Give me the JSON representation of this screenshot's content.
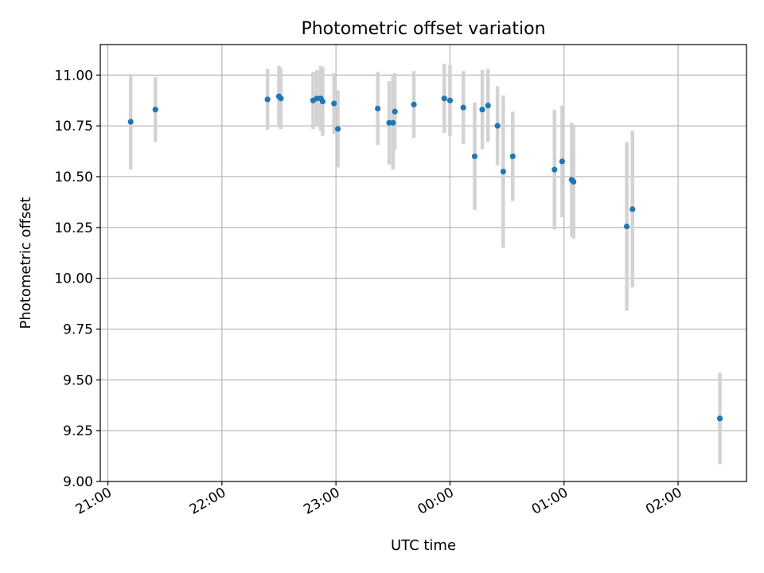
{
  "chart_data": {
    "type": "scatter",
    "title": "Photometric offset variation",
    "xlabel": "UTC time",
    "ylabel": "Photometric offset",
    "x_axis": "time",
    "xlim": [
      "20:56",
      "02:36"
    ],
    "ylim": [
      9.0,
      11.15
    ],
    "x_ticks": [
      "21:00",
      "22:00",
      "23:00",
      "00:00",
      "01:00",
      "02:00"
    ],
    "y_ticks": [
      "9.00",
      "9.25",
      "9.50",
      "9.75",
      "10.00",
      "10.25",
      "10.50",
      "10.75",
      "11.00"
    ],
    "grid": true,
    "marker_color": "#1f77b4",
    "errorbar_color": "#d3d3d3",
    "points": [
      {
        "t": "21:12",
        "y": 10.77,
        "err": 0.235
      },
      {
        "t": "21:25",
        "y": 10.83,
        "err": 0.16
      },
      {
        "t": "22:24",
        "y": 10.88,
        "err": 0.15
      },
      {
        "t": "22:30",
        "y": 10.895,
        "err": 0.15
      },
      {
        "t": "22:31",
        "y": 10.885,
        "err": 0.15
      },
      {
        "t": "22:48",
        "y": 10.875,
        "err": 0.14
      },
      {
        "t": "22:50",
        "y": 10.885,
        "err": 0.14
      },
      {
        "t": "22:52",
        "y": 10.885,
        "err": 0.16
      },
      {
        "t": "22:53",
        "y": 10.87,
        "err": 0.17
      },
      {
        "t": "22:59",
        "y": 10.86,
        "err": 0.15
      },
      {
        "t": "23:01",
        "y": 10.735,
        "err": 0.19
      },
      {
        "t": "23:22",
        "y": 10.835,
        "err": 0.18
      },
      {
        "t": "23:28",
        "y": 10.765,
        "err": 0.205
      },
      {
        "t": "23:30",
        "y": 10.765,
        "err": 0.23
      },
      {
        "t": "23:31",
        "y": 10.82,
        "err": 0.19
      },
      {
        "t": "23:41",
        "y": 10.855,
        "err": 0.165
      },
      {
        "t": "23:57",
        "y": 10.885,
        "err": 0.17
      },
      {
        "t": "00:00",
        "y": 10.875,
        "err": 0.175
      },
      {
        "t": "00:07",
        "y": 10.84,
        "err": 0.18
      },
      {
        "t": "00:13",
        "y": 10.6,
        "err": 0.265
      },
      {
        "t": "00:17",
        "y": 10.83,
        "err": 0.195
      },
      {
        "t": "00:20",
        "y": 10.85,
        "err": 0.18
      },
      {
        "t": "00:25",
        "y": 10.75,
        "err": 0.195
      },
      {
        "t": "00:28",
        "y": 10.525,
        "err": 0.375
      },
      {
        "t": "00:33",
        "y": 10.6,
        "err": 0.22
      },
      {
        "t": "00:55",
        "y": 10.535,
        "err": 0.295
      },
      {
        "t": "00:59",
        "y": 10.575,
        "err": 0.275
      },
      {
        "t": "01:04",
        "y": 10.485,
        "err": 0.28
      },
      {
        "t": "01:05",
        "y": 10.475,
        "err": 0.28
      },
      {
        "t": "01:33",
        "y": 10.255,
        "err": 0.415
      },
      {
        "t": "01:36",
        "y": 10.34,
        "err": 0.385
      },
      {
        "t": "02:22",
        "y": 9.31,
        "err": 0.225
      }
    ]
  }
}
